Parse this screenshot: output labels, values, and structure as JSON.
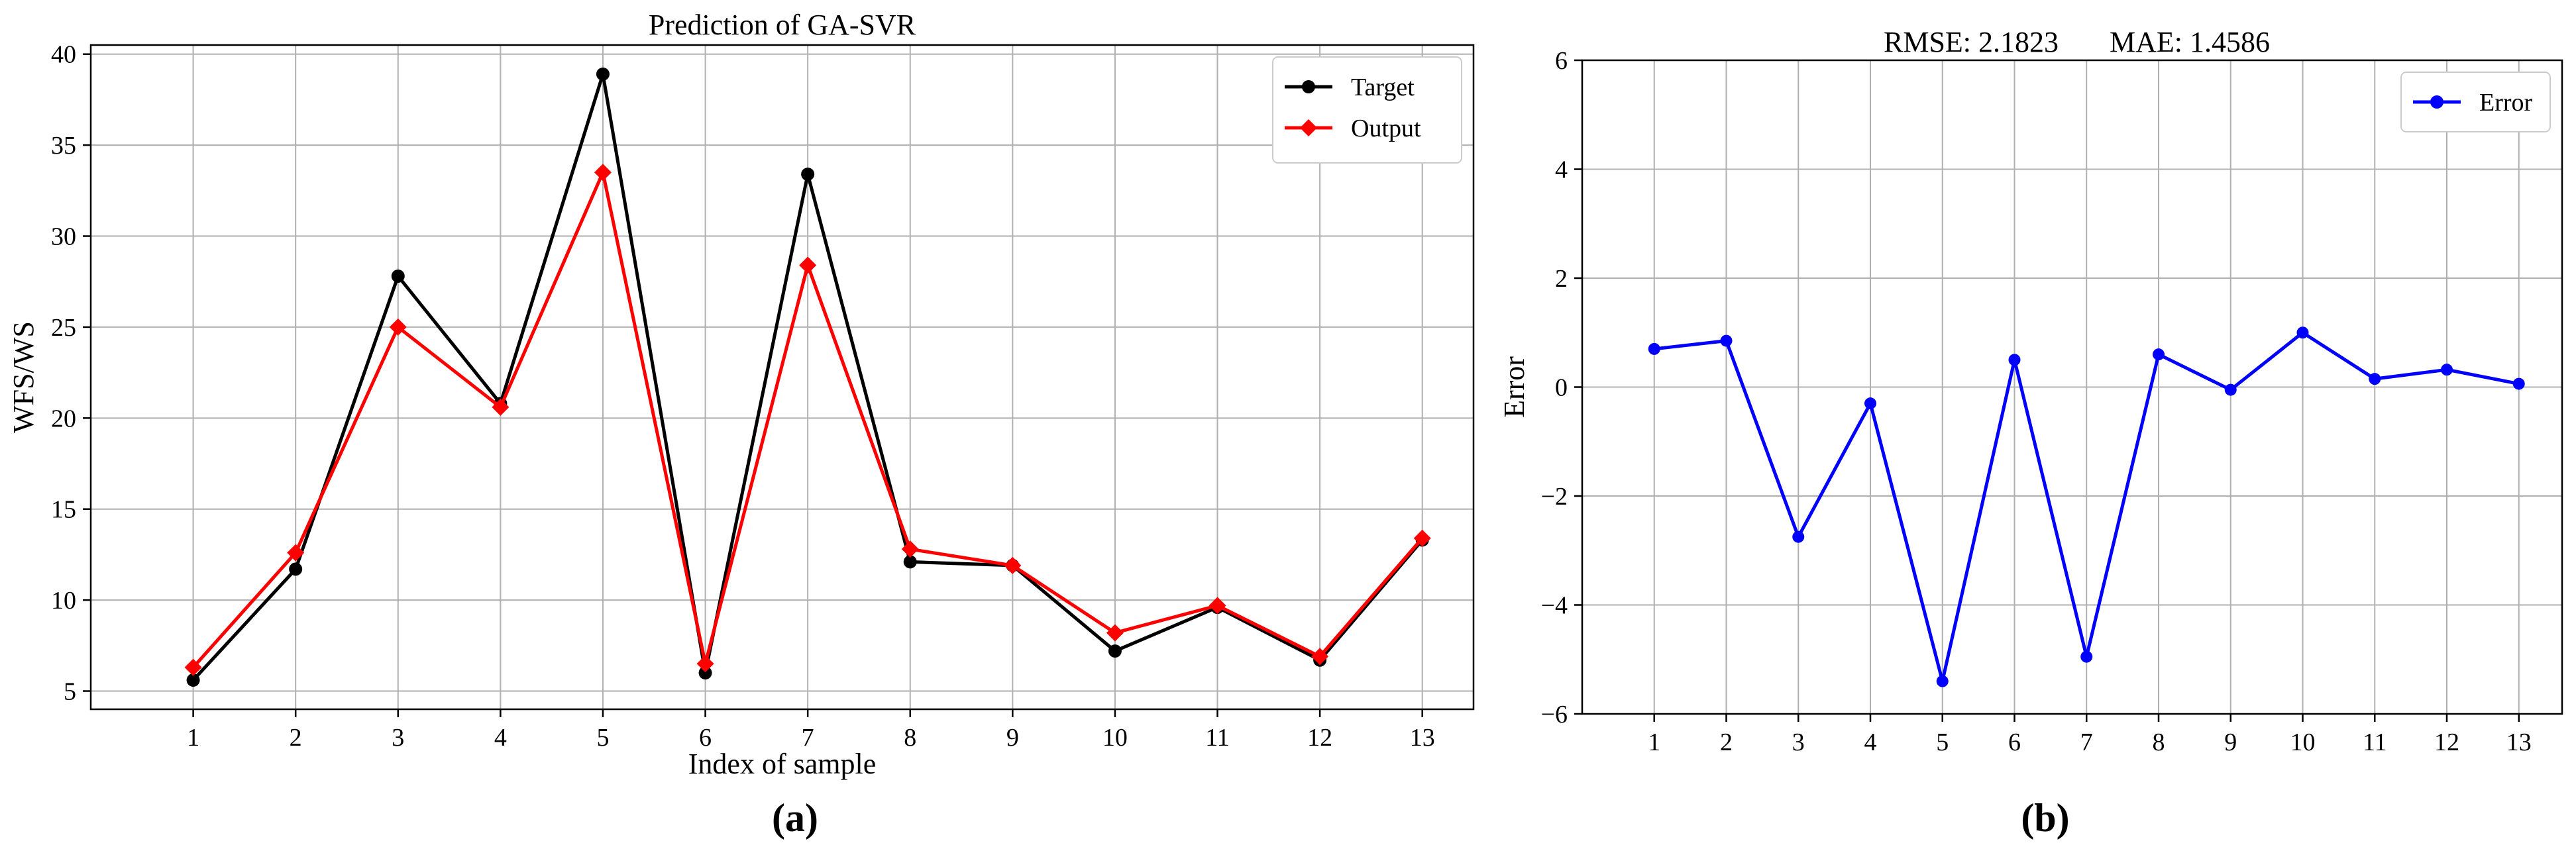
{
  "chart_data": [
    {
      "type": "line",
      "title": "Prediction of GA-SVR",
      "xlabel": "Index of sample",
      "ylabel": "WFS/WS",
      "x": [
        1,
        2,
        3,
        4,
        5,
        6,
        7,
        8,
        9,
        10,
        11,
        12,
        13
      ],
      "xticks": [
        "1",
        "2",
        "3",
        "4",
        "5",
        "6",
        "7",
        "8",
        "9",
        "10",
        "11",
        "12",
        "13"
      ],
      "xlim": [
        0.0,
        13.5
      ],
      "ylim": [
        4,
        40.5
      ],
      "yticks": [
        5,
        10,
        15,
        20,
        25,
        30,
        35,
        40
      ],
      "grid": true,
      "legend_position": "top-right",
      "series": [
        {
          "name": "Target",
          "color": "#000000",
          "marker": "circle",
          "values": [
            5.6,
            11.7,
            27.8,
            20.8,
            38.9,
            6.0,
            33.4,
            12.1,
            11.9,
            7.2,
            9.6,
            6.7,
            13.3
          ]
        },
        {
          "name": "Output",
          "color": "#ff0000",
          "marker": "diamond",
          "values": [
            6.3,
            12.6,
            25.0,
            20.6,
            33.5,
            6.5,
            28.4,
            12.8,
            11.9,
            8.2,
            9.7,
            6.9,
            13.4
          ]
        }
      ],
      "panel_label": "(a)"
    },
    {
      "type": "line",
      "title": "",
      "annotations": [
        "RMSE: 2.1823",
        "MAE: 1.4586"
      ],
      "xlabel": "",
      "ylabel": "Error",
      "x": [
        1,
        2,
        3,
        4,
        5,
        6,
        7,
        8,
        9,
        10,
        11,
        12,
        13
      ],
      "xticks": [
        "1",
        "2",
        "3",
        "4",
        "5",
        "6",
        "7",
        "8",
        "9",
        "10",
        "11",
        "12",
        "13"
      ],
      "xlim": [
        0.0,
        13.6
      ],
      "ylim": [
        -6,
        6
      ],
      "yticks": [
        -6,
        -4,
        -2,
        0,
        2,
        4,
        6
      ],
      "ytick_labels": [
        "−6",
        "−4",
        "−2",
        "0",
        "2",
        "4",
        "6"
      ],
      "grid": true,
      "legend_position": "top-right",
      "series": [
        {
          "name": "Error",
          "color": "#0000ff",
          "marker": "circle",
          "values": [
            0.7,
            0.85,
            -2.75,
            -0.3,
            -5.4,
            0.5,
            -4.95,
            0.6,
            -0.05,
            1.0,
            0.15,
            0.32,
            0.06
          ]
        }
      ],
      "panel_label": "(b)"
    }
  ]
}
